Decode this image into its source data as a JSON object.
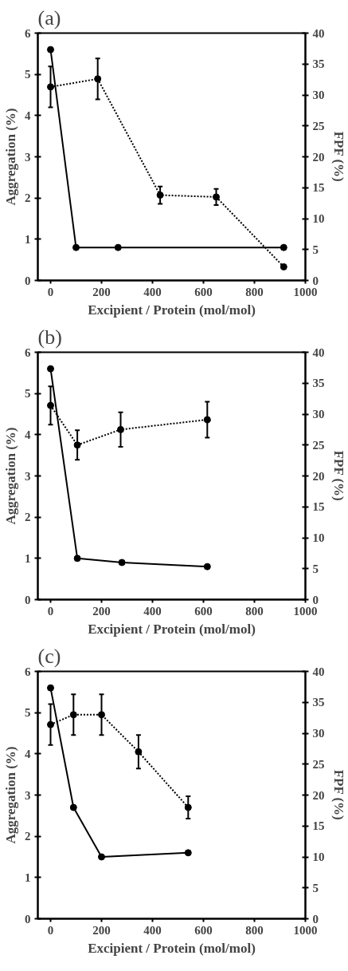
{
  "chart_data": [
    {
      "type": "line",
      "title": "(a)",
      "xlabel": "Excipient / Protein (mol/mol)",
      "ylabel": "Aggregation (%)",
      "y2label": "FPF (%)",
      "xlim": [
        -50,
        1000
      ],
      "xticks": [
        0,
        200,
        400,
        600,
        800,
        1000
      ],
      "ylim": [
        0,
        6
      ],
      "yticks": [
        0,
        1,
        2,
        3,
        4,
        5,
        6
      ],
      "y2lim": [
        0,
        40
      ],
      "y2ticks": [
        0,
        5,
        10,
        15,
        20,
        25,
        30,
        35,
        40
      ],
      "grid": false,
      "marker": "circle",
      "series": [
        {
          "color": "#000000",
          "line_style": "solid",
          "x": [
            0,
            100,
            265,
            915
          ],
          "values": [
            5.6,
            0.8,
            0.8,
            0.8
          ]
        },
        {
          "color": "#000000",
          "line_style": "dotted",
          "axis": "y2",
          "x": [
            0,
            185,
            430,
            650,
            915
          ],
          "values": [
            31.3,
            32.6,
            13.8,
            13.5,
            2.2
          ],
          "errors": [
            3.3,
            3.3,
            1.4,
            1.3,
            null
          ]
        }
      ]
    },
    {
      "type": "line",
      "title": "(b)",
      "xlabel": "Excipient / Protein (mol/mol)",
      "ylabel": "Aggregation (%)",
      "y2label": "FPF (%)",
      "xlim": [
        -50,
        1000
      ],
      "xticks": [
        0,
        200,
        400,
        600,
        800,
        1000
      ],
      "ylim": [
        0,
        6
      ],
      "yticks": [
        0,
        1,
        2,
        3,
        4,
        5,
        6
      ],
      "y2lim": [
        0,
        40
      ],
      "y2ticks": [
        0,
        5,
        10,
        15,
        20,
        25,
        30,
        35,
        40
      ],
      "grid": false,
      "marker": "circle",
      "series": [
        {
          "color": "#000000",
          "line_style": "solid",
          "x": [
            0,
            105,
            280,
            615
          ],
          "values": [
            5.6,
            1.0,
            0.9,
            0.8
          ]
        },
        {
          "color": "#000000",
          "line_style": "dotted",
          "axis": "y2",
          "x": [
            0,
            105,
            275,
            615
          ],
          "values": [
            31.4,
            25.0,
            27.5,
            29.1
          ],
          "errors": [
            3.1,
            2.4,
            2.8,
            2.9
          ]
        }
      ]
    },
    {
      "type": "line",
      "title": "(c)",
      "xlabel": "Excipient / Protein (mol/mol)",
      "ylabel": "Aggregation (%)",
      "y2label": "FPF (%)",
      "xlim": [
        -50,
        1000
      ],
      "xticks": [
        0,
        200,
        400,
        600,
        800,
        1000
      ],
      "ylim": [
        0,
        6
      ],
      "yticks": [
        0,
        1,
        2,
        3,
        4,
        5,
        6
      ],
      "y2lim": [
        0,
        40
      ],
      "y2ticks": [
        0,
        5,
        10,
        15,
        20,
        25,
        30,
        35,
        40
      ],
      "grid": false,
      "marker": "circle",
      "series": [
        {
          "color": "#000000",
          "line_style": "solid",
          "x": [
            0,
            90,
            200,
            540
          ],
          "values": [
            5.6,
            2.7,
            1.5,
            1.6
          ]
        },
        {
          "color": "#000000",
          "line_style": "dotted",
          "axis": "y2",
          "x": [
            0,
            90,
            200,
            345,
            540
          ],
          "values": [
            31.4,
            33.0,
            33.0,
            27.0,
            18.0
          ],
          "errors": [
            3.3,
            3.3,
            3.3,
            2.7,
            1.8
          ]
        }
      ]
    }
  ]
}
